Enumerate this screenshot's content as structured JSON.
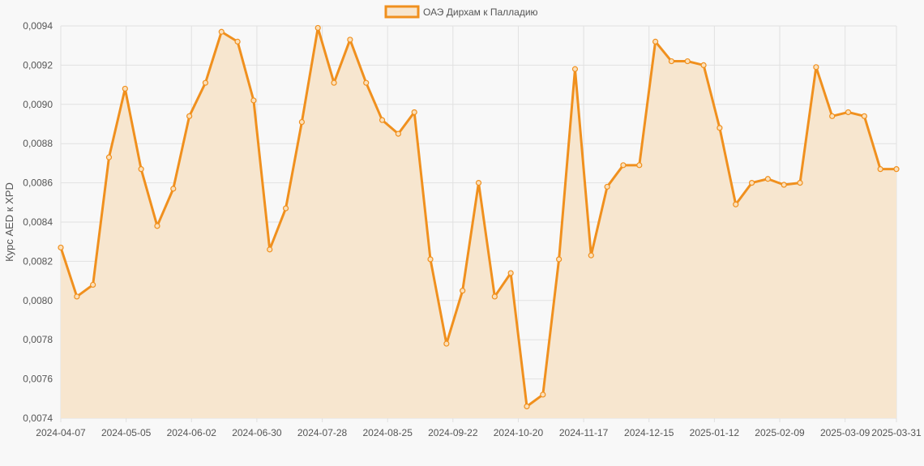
{
  "chart_data": {
    "type": "area",
    "series": [
      {
        "name": "ОАЭ Дирхам к Палладию",
        "values": [
          0.00827,
          0.00802,
          0.00808,
          0.00873,
          0.00908,
          0.00867,
          0.00838,
          0.00857,
          0.00894,
          0.00911,
          0.00937,
          0.00932,
          0.00902,
          0.00826,
          0.00847,
          0.00891,
          0.00939,
          0.00911,
          0.00933,
          0.00911,
          0.00892,
          0.00885,
          0.00896,
          0.00821,
          0.00778,
          0.00805,
          0.0086,
          0.00802,
          0.00814,
          0.00746,
          0.00752,
          0.00821,
          0.00918,
          0.00823,
          0.00858,
          0.00869,
          0.00869,
          0.00932,
          0.00922,
          0.00922,
          0.0092,
          0.00888,
          0.00849,
          0.0086,
          0.00862,
          0.00859,
          0.0086,
          0.00919,
          0.00894,
          0.00896,
          0.00894,
          0.00867,
          0.00867
        ]
      }
    ],
    "x_start": "2024-04-07",
    "x_end": "2025-03-31",
    "x_ticks": [
      "2024-04-07",
      "2024-05-05",
      "2024-06-02",
      "2024-06-30",
      "2024-07-28",
      "2024-08-25",
      "2024-09-22",
      "2024-10-20",
      "2024-11-17",
      "2024-12-15",
      "2025-01-12",
      "2025-02-09",
      "2025-03-09",
      "2025-03-31"
    ],
    "y_ticks": [
      "0,0074",
      "0,0076",
      "0,0078",
      "0,0080",
      "0,0082",
      "0,0084",
      "0,0086",
      "0,0088",
      "0,0090",
      "0,0092",
      "0,0094"
    ],
    "ylim": [
      0.0074,
      0.0094
    ],
    "ylabel": "Курс AED к XPD",
    "xlabel": "",
    "grid": true,
    "legend_position": "top-center",
    "colors": {
      "line": "#f0901e",
      "fill": "#f7e6cf",
      "point_fill": "#fbe0bb",
      "background": "#f8f8f8"
    }
  }
}
